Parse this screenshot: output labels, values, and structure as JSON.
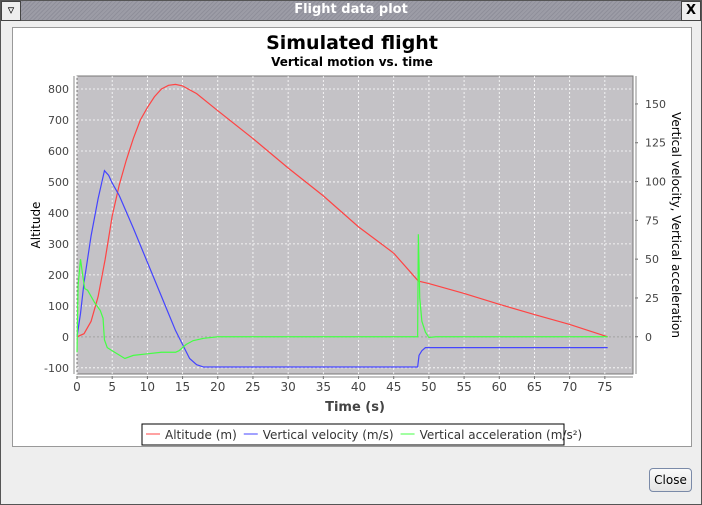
{
  "window": {
    "title": "Flight data plot",
    "menu_icon": "triangle-down-icon",
    "close_icon": "x-icon",
    "close_button": "Close"
  },
  "chart_data": {
    "type": "line",
    "title": "Simulated flight",
    "subtitle": "Vertical motion vs. time",
    "xlabel": "Time (s)",
    "ylabel_left": "Altitude",
    "ylabel_right": "Vertical velocity, Vertical acceleration",
    "xlim": [
      0,
      79
    ],
    "ylim_left": [
      -120,
      842
    ],
    "ylim_right": [
      -24,
      168
    ],
    "x_ticks": [
      0,
      5,
      10,
      15,
      20,
      25,
      30,
      35,
      40,
      45,
      50,
      55,
      60,
      65,
      70,
      75
    ],
    "y_ticks_left": [
      -100,
      0,
      100,
      200,
      300,
      400,
      500,
      600,
      700,
      800
    ],
    "y_ticks_right": [
      0,
      25,
      50,
      75,
      100,
      125,
      150
    ],
    "grid": true,
    "plot_background": "#c4c2c6",
    "legend_position": "bottom",
    "series": [
      {
        "name": "Altitude (m)",
        "axis": "left",
        "color": "#ff4444",
        "x": [
          0,
          1,
          2,
          3,
          4,
          5,
          6,
          7,
          8,
          9,
          10,
          11,
          12,
          13,
          14,
          15,
          17,
          20,
          25,
          30,
          35,
          40,
          45,
          48.5,
          50,
          55,
          60,
          65,
          70,
          75.4
        ],
        "y": [
          0,
          10,
          50,
          130,
          250,
          390,
          490,
          570,
          640,
          700,
          740,
          775,
          800,
          812,
          815,
          810,
          785,
          730,
          640,
          545,
          455,
          355,
          270,
          180,
          172,
          140,
          105,
          72,
          40,
          0
        ]
      },
      {
        "name": "Vertical velocity (m/s)",
        "axis": "right",
        "color": "#4444ff",
        "x": [
          0,
          0.5,
          1,
          2,
          3,
          3.9,
          4.5,
          5,
          6,
          8,
          10,
          12,
          13,
          14,
          15,
          16,
          17,
          18,
          48.4,
          48.6,
          49,
          49.5,
          75.4
        ],
        "y": [
          0,
          15,
          35,
          65,
          89,
          107,
          104,
          99,
          91,
          70,
          48,
          26,
          15,
          4,
          -5,
          -14,
          -18,
          -19.5,
          -19.5,
          -12,
          -9,
          -7,
          -7
        ]
      },
      {
        "name": "Vertical acceleration (m/s²)",
        "axis": "right",
        "color": "#44ff44",
        "x": [
          0,
          0.15,
          0.5,
          0.8,
          1.1,
          1.5,
          2.5,
          3.3,
          3.7,
          3.9,
          4.3,
          5,
          6.8,
          8,
          10,
          12,
          14,
          14.5,
          15.5,
          16.5,
          18,
          20,
          48.4,
          48.5,
          48.7,
          49,
          49.5,
          50,
          51,
          75.4
        ],
        "y": [
          -10,
          33,
          50,
          40,
          31,
          30,
          22,
          17,
          12,
          -2,
          -7,
          -9,
          -14,
          -12,
          -11,
          -10,
          -10,
          -9,
          -5,
          -2.5,
          -1,
          0,
          0,
          66,
          25,
          10,
          3,
          -0.5,
          0,
          0
        ]
      }
    ]
  }
}
